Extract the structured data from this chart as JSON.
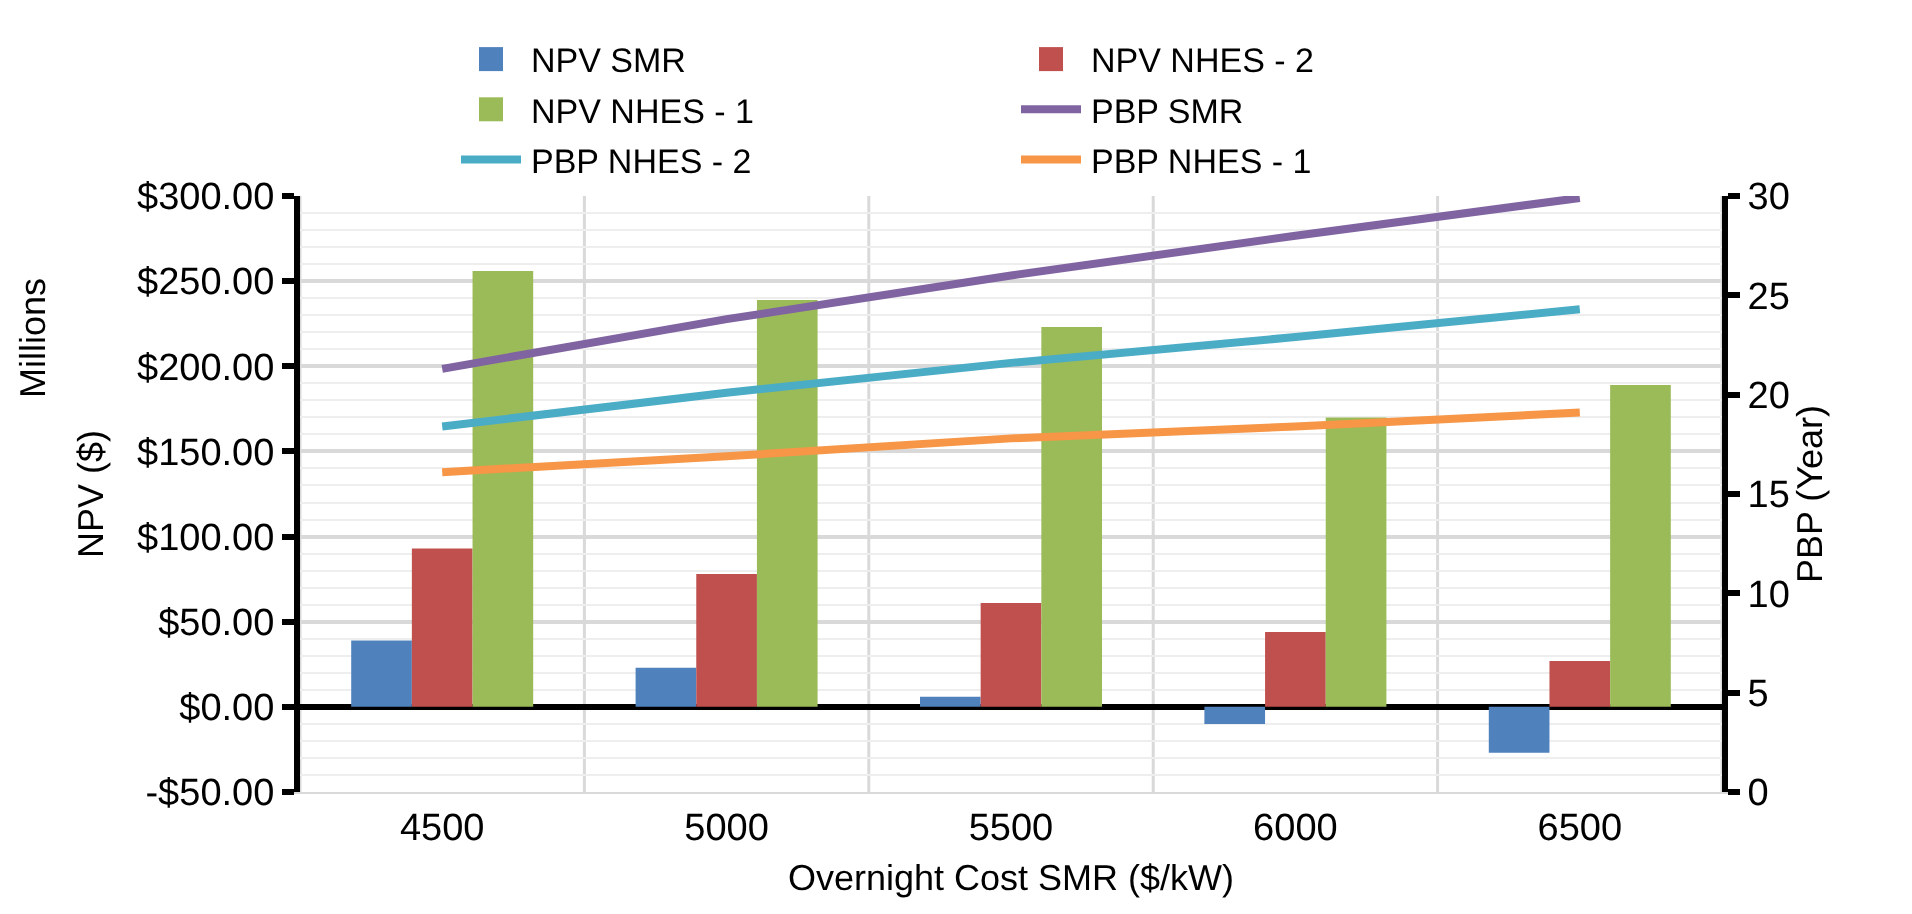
{
  "chart_data": {
    "type": "bar",
    "xlabel": "Overnight Cost SMR ($/kW)",
    "ylabel": "NPV ($)",
    "y2label": "PBP (Year)",
    "annotations": [
      "Millions"
    ],
    "categories": [
      "4500",
      "5000",
      "5500",
      "6000",
      "6500"
    ],
    "series": [
      {
        "name": "NPV SMR",
        "color": "#4f81bd",
        "values": [
          39,
          23,
          6,
          -10,
          -27
        ]
      },
      {
        "name": "NPV NHES - 2",
        "color": "#c0504d",
        "values": [
          93,
          78,
          61,
          44,
          27
        ]
      },
      {
        "name": "NPV NHES - 1",
        "color": "#9bbb59",
        "values": [
          256,
          239,
          223,
          170,
          189
        ]
      },
      {
        "name": "PBP SMR",
        "type": "line",
        "axis": "y2",
        "color": "#8064a2",
        "values": [
          21.3,
          23.8,
          26.0,
          28.0,
          29.9
        ]
      },
      {
        "name": "PBP NHES - 2",
        "type": "line",
        "axis": "y2",
        "color": "#4bacc6",
        "values": [
          18.4,
          20.1,
          21.6,
          22.9,
          24.3
        ]
      },
      {
        "name": "PBP NHES - 1",
        "type": "line",
        "axis": "y2",
        "color": "#f79646",
        "values": [
          16.1,
          16.9,
          17.8,
          18.4,
          19.1
        ]
      }
    ],
    "ylim": [
      -50,
      300
    ],
    "yticks": [
      {
        "value": -50,
        "label": "-$50.00"
      },
      {
        "value": 0,
        "label": "$0.00"
      },
      {
        "value": 50,
        "label": "$50.00"
      },
      {
        "value": 100,
        "label": "$100.00"
      },
      {
        "value": 150,
        "label": "$150.00"
      },
      {
        "value": 200,
        "label": "$200.00"
      },
      {
        "value": 250,
        "label": "$250.00"
      },
      {
        "value": 300,
        "label": "$300.00"
      }
    ],
    "y2lim": [
      0,
      30
    ],
    "y2ticks": [
      0,
      5,
      10,
      15,
      20,
      25,
      30
    ],
    "grid": true,
    "legend": "top",
    "marker": "none",
    "line_style": "solid"
  }
}
